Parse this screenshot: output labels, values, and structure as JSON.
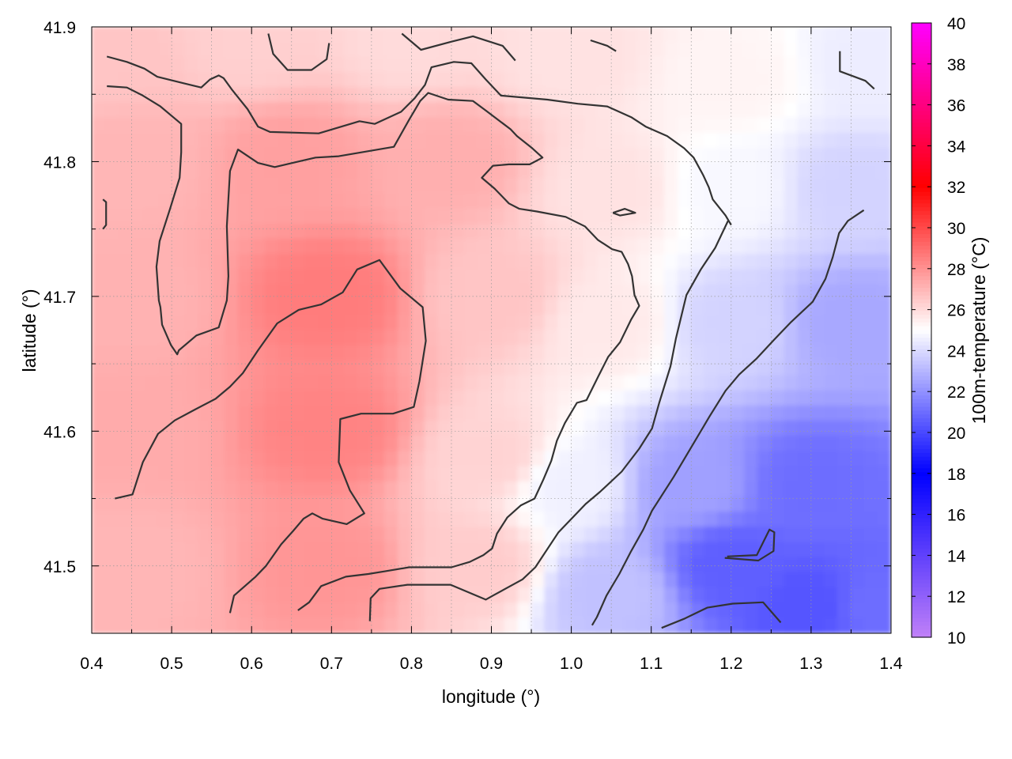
{
  "chart_data": {
    "type": "heatmap",
    "title": "",
    "xlabel": "longitude (°)",
    "ylabel": "latitude (°)",
    "colorbar_label": "100m-temperature (°C)",
    "xlim": [
      0.4,
      1.4
    ],
    "ylim": [
      41.45,
      41.9
    ],
    "x_ticks": [
      0.4,
      0.5,
      0.6,
      0.7,
      0.8,
      0.9,
      1.0,
      1.1,
      1.2,
      1.3,
      1.4
    ],
    "y_ticks": [
      41.5,
      41.6,
      41.7,
      41.8,
      41.9
    ],
    "x_tick_labels": [
      "0.4",
      "0.5",
      "0.6",
      "0.7",
      "0.8",
      "0.9",
      "1.0",
      "1.1",
      "1.2",
      "1.3",
      "1.4"
    ],
    "y_tick_labels": [
      "41.5",
      "41.6",
      "41.7",
      "41.8",
      "41.9"
    ],
    "colorbar_range": [
      10,
      40
    ],
    "colorbar_ticks": [
      10,
      12,
      14,
      16,
      18,
      20,
      22,
      24,
      26,
      28,
      30,
      32,
      34,
      36,
      38,
      40
    ],
    "colorbar_tick_labels": [
      "10",
      "12",
      "14",
      "16",
      "18",
      "20",
      "22",
      "24",
      "26",
      "28",
      "30",
      "32",
      "34",
      "36",
      "38",
      "40"
    ],
    "colorbar_stops": [
      {
        "value": 10,
        "color": "#c080f8"
      },
      {
        "value": 18,
        "color": "#0000ff"
      },
      {
        "value": 25,
        "color": "#ffffff"
      },
      {
        "value": 32,
        "color": "#ff0000"
      },
      {
        "value": 40,
        "color": "#ff00ff"
      }
    ],
    "grid": true,
    "contour_color": "#333333",
    "field_anchors": [
      {
        "lon": 0.42,
        "lat": 41.88,
        "temp": 26.6
      },
      {
        "lon": 0.6,
        "lat": 41.89,
        "temp": 26.3
      },
      {
        "lon": 0.8,
        "lat": 41.89,
        "temp": 26.0
      },
      {
        "lon": 1.0,
        "lat": 41.88,
        "temp": 25.8
      },
      {
        "lon": 1.2,
        "lat": 41.86,
        "temp": 25.3
      },
      {
        "lon": 1.38,
        "lat": 41.87,
        "temp": 24.5
      },
      {
        "lon": 0.45,
        "lat": 41.8,
        "temp": 27.0
      },
      {
        "lon": 0.65,
        "lat": 41.8,
        "temp": 27.6
      },
      {
        "lon": 0.85,
        "lat": 41.8,
        "temp": 27.2
      },
      {
        "lon": 1.05,
        "lat": 41.78,
        "temp": 25.8
      },
      {
        "lon": 1.2,
        "lat": 41.78,
        "temp": 24.8
      },
      {
        "lon": 1.35,
        "lat": 41.78,
        "temp": 23.8
      },
      {
        "lon": 0.45,
        "lat": 41.7,
        "temp": 27.1
      },
      {
        "lon": 0.7,
        "lat": 41.7,
        "temp": 28.6
      },
      {
        "lon": 0.9,
        "lat": 41.7,
        "temp": 26.6
      },
      {
        "lon": 1.05,
        "lat": 41.68,
        "temp": 25.6
      },
      {
        "lon": 1.2,
        "lat": 41.68,
        "temp": 23.8
      },
      {
        "lon": 1.35,
        "lat": 41.68,
        "temp": 22.6
      },
      {
        "lon": 0.45,
        "lat": 41.6,
        "temp": 27.3
      },
      {
        "lon": 0.7,
        "lat": 41.6,
        "temp": 28.4
      },
      {
        "lon": 0.9,
        "lat": 41.58,
        "temp": 26.2
      },
      {
        "lon": 1.0,
        "lat": 41.56,
        "temp": 24.6
      },
      {
        "lon": 1.15,
        "lat": 41.56,
        "temp": 22.4
      },
      {
        "lon": 1.3,
        "lat": 41.56,
        "temp": 21.0
      },
      {
        "lon": 0.45,
        "lat": 41.5,
        "temp": 27.0
      },
      {
        "lon": 0.7,
        "lat": 41.5,
        "temp": 27.9
      },
      {
        "lon": 0.88,
        "lat": 41.5,
        "temp": 26.4
      },
      {
        "lon": 1.05,
        "lat": 41.48,
        "temp": 23.3
      },
      {
        "lon": 1.2,
        "lat": 41.5,
        "temp": 20.6
      },
      {
        "lon": 1.3,
        "lat": 41.47,
        "temp": 20.3
      },
      {
        "lon": 1.38,
        "lat": 41.47,
        "temp": 21.0
      }
    ],
    "contours": [
      {
        "points": [
          [
            0.419,
            41.878
          ],
          [
            0.444,
            41.874
          ],
          [
            0.466,
            41.869
          ],
          [
            0.482,
            41.863
          ],
          [
            0.516,
            41.858
          ],
          [
            0.537,
            41.855
          ],
          [
            0.548,
            41.861
          ],
          [
            0.559,
            41.864
          ],
          [
            0.565,
            41.862
          ],
          [
            0.576,
            41.853
          ],
          [
            0.595,
            41.839
          ],
          [
            0.608,
            41.826
          ],
          [
            0.623,
            41.822
          ],
          [
            0.684,
            41.821
          ],
          [
            0.735,
            41.83
          ],
          [
            0.754,
            41.828
          ],
          [
            0.787,
            41.837
          ],
          [
            0.804,
            41.847
          ],
          [
            0.817,
            41.857
          ],
          [
            0.825,
            41.87
          ],
          [
            0.853,
            41.874
          ],
          [
            0.875,
            41.873
          ],
          [
            0.893,
            41.861
          ],
          [
            0.912,
            41.849
          ],
          [
            0.97,
            41.846
          ],
          [
            1.008,
            41.843
          ],
          [
            1.045,
            41.841
          ],
          [
            1.075,
            41.833
          ],
          [
            1.093,
            41.826
          ],
          [
            1.12,
            41.819
          ],
          [
            1.141,
            41.81
          ],
          [
            1.153,
            41.803
          ],
          [
            1.165,
            41.79
          ],
          [
            1.172,
            41.781
          ],
          [
            1.177,
            41.772
          ],
          [
            1.193,
            41.76
          ],
          [
            1.2,
            41.753
          ]
        ]
      },
      {
        "points": [
          [
            0.419,
            41.856
          ],
          [
            0.444,
            41.855
          ],
          [
            0.464,
            41.849
          ],
          [
            0.486,
            41.841
          ],
          [
            0.512,
            41.828
          ],
          [
            0.512,
            41.807
          ],
          [
            0.51,
            41.788
          ],
          [
            0.498,
            41.765
          ],
          [
            0.485,
            41.741
          ],
          [
            0.481,
            41.722
          ],
          [
            0.484,
            41.697
          ],
          [
            0.486,
            41.692
          ],
          [
            0.488,
            41.679
          ],
          [
            0.499,
            41.664
          ],
          [
            0.507,
            41.657
          ],
          [
            0.509,
            41.66
          ],
          [
            0.531,
            41.671
          ],
          [
            0.559,
            41.677
          ],
          [
            0.569,
            41.697
          ],
          [
            0.571,
            41.715
          ],
          [
            0.569,
            41.752
          ],
          [
            0.573,
            41.793
          ],
          [
            0.583,
            41.809
          ],
          [
            0.608,
            41.799
          ],
          [
            0.629,
            41.796
          ],
          [
            0.68,
            41.803
          ],
          [
            0.709,
            41.804
          ],
          [
            0.778,
            41.811
          ],
          [
            0.797,
            41.831
          ],
          [
            0.811,
            41.845
          ],
          [
            0.821,
            41.851
          ],
          [
            0.846,
            41.846
          ],
          [
            0.877,
            41.845
          ],
          [
            0.893,
            41.838
          ],
          [
            0.924,
            41.824
          ],
          [
            0.932,
            41.819
          ],
          [
            0.951,
            41.81
          ],
          [
            0.964,
            41.803
          ],
          [
            0.948,
            41.798
          ],
          [
            0.922,
            41.798
          ],
          [
            0.902,
            41.797
          ],
          [
            0.888,
            41.788
          ],
          [
            0.904,
            41.78
          ],
          [
            0.922,
            41.769
          ],
          [
            0.935,
            41.765
          ],
          [
            0.957,
            41.763
          ],
          [
            0.993,
            41.759
          ],
          [
            1.017,
            41.752
          ],
          [
            1.033,
            41.742
          ],
          [
            1.051,
            41.735
          ],
          [
            1.063,
            41.733
          ],
          [
            1.071,
            41.724
          ],
          [
            1.076,
            41.715
          ],
          [
            1.079,
            41.701
          ],
          [
            1.085,
            41.693
          ],
          [
            1.075,
            41.683
          ],
          [
            1.061,
            41.666
          ],
          [
            1.046,
            41.655
          ],
          [
            1.034,
            41.641
          ],
          [
            1.019,
            41.623
          ],
          [
            1.007,
            41.621
          ],
          [
            0.992,
            41.606
          ],
          [
            0.982,
            41.593
          ],
          [
            0.975,
            41.578
          ],
          [
            0.965,
            41.564
          ],
          [
            0.954,
            41.55
          ],
          [
            0.937,
            41.545
          ],
          [
            0.92,
            41.536
          ],
          [
            0.907,
            41.524
          ],
          [
            0.901,
            41.513
          ],
          [
            0.89,
            41.508
          ],
          [
            0.873,
            41.503
          ],
          [
            0.85,
            41.499
          ],
          [
            0.797,
            41.499
          ],
          [
            0.767,
            41.496
          ],
          [
            0.746,
            41.494
          ],
          [
            0.718,
            41.492
          ],
          [
            0.687,
            41.485
          ],
          [
            0.672,
            41.473
          ],
          [
            0.658,
            41.467
          ]
        ]
      },
      {
        "points": [
          [
            0.429,
            41.55
          ],
          [
            0.451,
            41.553
          ],
          [
            0.464,
            41.577
          ],
          [
            0.483,
            41.598
          ],
          [
            0.504,
            41.608
          ],
          [
            0.529,
            41.616
          ],
          [
            0.555,
            41.624
          ],
          [
            0.573,
            41.633
          ],
          [
            0.589,
            41.643
          ],
          [
            0.608,
            41.66
          ],
          [
            0.632,
            41.68
          ],
          [
            0.659,
            41.69
          ],
          [
            0.687,
            41.694
          ],
          [
            0.714,
            41.703
          ],
          [
            0.732,
            41.72
          ],
          [
            0.76,
            41.727
          ],
          [
            0.786,
            41.706
          ],
          [
            0.814,
            41.692
          ],
          [
            0.818,
            41.667
          ],
          [
            0.81,
            41.637
          ],
          [
            0.803,
            41.618
          ],
          [
            0.777,
            41.613
          ],
          [
            0.737,
            41.613
          ],
          [
            0.711,
            41.609
          ],
          [
            0.709,
            41.577
          ],
          [
            0.723,
            41.556
          ],
          [
            0.741,
            41.539
          ],
          [
            0.719,
            41.531
          ],
          [
            0.689,
            41.535
          ],
          [
            0.676,
            41.539
          ],
          [
            0.665,
            41.535
          ],
          [
            0.652,
            41.526
          ],
          [
            0.637,
            41.516
          ],
          [
            0.618,
            41.5
          ],
          [
            0.605,
            41.492
          ],
          [
            0.578,
            41.478
          ],
          [
            0.573,
            41.465
          ]
        ]
      },
      {
        "points": [
          [
            0.748,
            41.459
          ],
          [
            0.749,
            41.476
          ],
          [
            0.76,
            41.483
          ],
          [
            0.795,
            41.486
          ],
          [
            0.849,
            41.486
          ],
          [
            0.893,
            41.475
          ],
          [
            0.902,
            41.478
          ],
          [
            0.939,
            41.49
          ],
          [
            0.955,
            41.499
          ],
          [
            0.984,
            41.525
          ],
          [
            1.018,
            41.546
          ],
          [
            1.036,
            41.555
          ],
          [
            1.063,
            41.57
          ],
          [
            1.085,
            41.587
          ],
          [
            1.101,
            41.602
          ],
          [
            1.11,
            41.621
          ],
          [
            1.124,
            41.648
          ],
          [
            1.131,
            41.669
          ],
          [
            1.144,
            41.701
          ],
          [
            1.162,
            41.72
          ],
          [
            1.18,
            41.736
          ],
          [
            1.196,
            41.756
          ]
        ]
      },
      {
        "points": [
          [
            1.026,
            41.456
          ],
          [
            1.032,
            41.462
          ],
          [
            1.044,
            41.478
          ],
          [
            1.06,
            41.494
          ],
          [
            1.074,
            41.51
          ],
          [
            1.09,
            41.527
          ],
          [
            1.101,
            41.541
          ],
          [
            1.128,
            41.566
          ],
          [
            1.147,
            41.585
          ],
          [
            1.173,
            41.611
          ],
          [
            1.193,
            41.63
          ],
          [
            1.21,
            41.642
          ],
          [
            1.232,
            41.654
          ],
          [
            1.254,
            41.668
          ],
          [
            1.275,
            41.681
          ],
          [
            1.302,
            41.696
          ],
          [
            1.318,
            41.713
          ],
          [
            1.327,
            41.729
          ],
          [
            1.335,
            41.747
          ],
          [
            1.346,
            41.756
          ],
          [
            1.366,
            41.764
          ]
        ]
      },
      {
        "points": [
          [
            1.113,
            41.454
          ],
          [
            1.142,
            41.461
          ],
          [
            1.17,
            41.469
          ],
          [
            1.202,
            41.472
          ],
          [
            1.24,
            41.473
          ],
          [
            1.262,
            41.458
          ]
        ]
      },
      {
        "points": [
          [
            1.192,
            41.506
          ],
          [
            1.234,
            41.504
          ],
          [
            1.253,
            41.511
          ],
          [
            1.254,
            41.525
          ],
          [
            1.248,
            41.527
          ],
          [
            1.232,
            41.508
          ],
          [
            1.195,
            41.507
          ]
        ]
      },
      {
        "points": [
          [
            1.052,
            41.762
          ],
          [
            1.067,
            41.765
          ],
          [
            1.08,
            41.762
          ],
          [
            1.061,
            41.76
          ],
          [
            1.052,
            41.762
          ]
        ]
      },
      {
        "points": [
          [
            0.414,
            41.75
          ],
          [
            0.418,
            41.753
          ],
          [
            0.418,
            41.77
          ],
          [
            0.414,
            41.772
          ]
        ]
      },
      {
        "points": [
          [
            0.621,
            41.895
          ],
          [
            0.627,
            41.88
          ],
          [
            0.645,
            41.868
          ],
          [
            0.675,
            41.868
          ],
          [
            0.694,
            41.876
          ],
          [
            0.697,
            41.888
          ]
        ]
      },
      {
        "points": [
          [
            0.788,
            41.895
          ],
          [
            0.812,
            41.883
          ],
          [
            0.85,
            41.889
          ],
          [
            0.877,
            41.893
          ],
          [
            0.914,
            41.886
          ],
          [
            0.93,
            41.875
          ]
        ]
      },
      {
        "points": [
          [
            1.024,
            41.89
          ],
          [
            1.045,
            41.886
          ],
          [
            1.056,
            41.882
          ]
        ]
      },
      {
        "points": [
          [
            1.336,
            41.882
          ],
          [
            1.336,
            41.867
          ],
          [
            1.368,
            41.86
          ],
          [
            1.379,
            41.854
          ]
        ]
      }
    ]
  }
}
